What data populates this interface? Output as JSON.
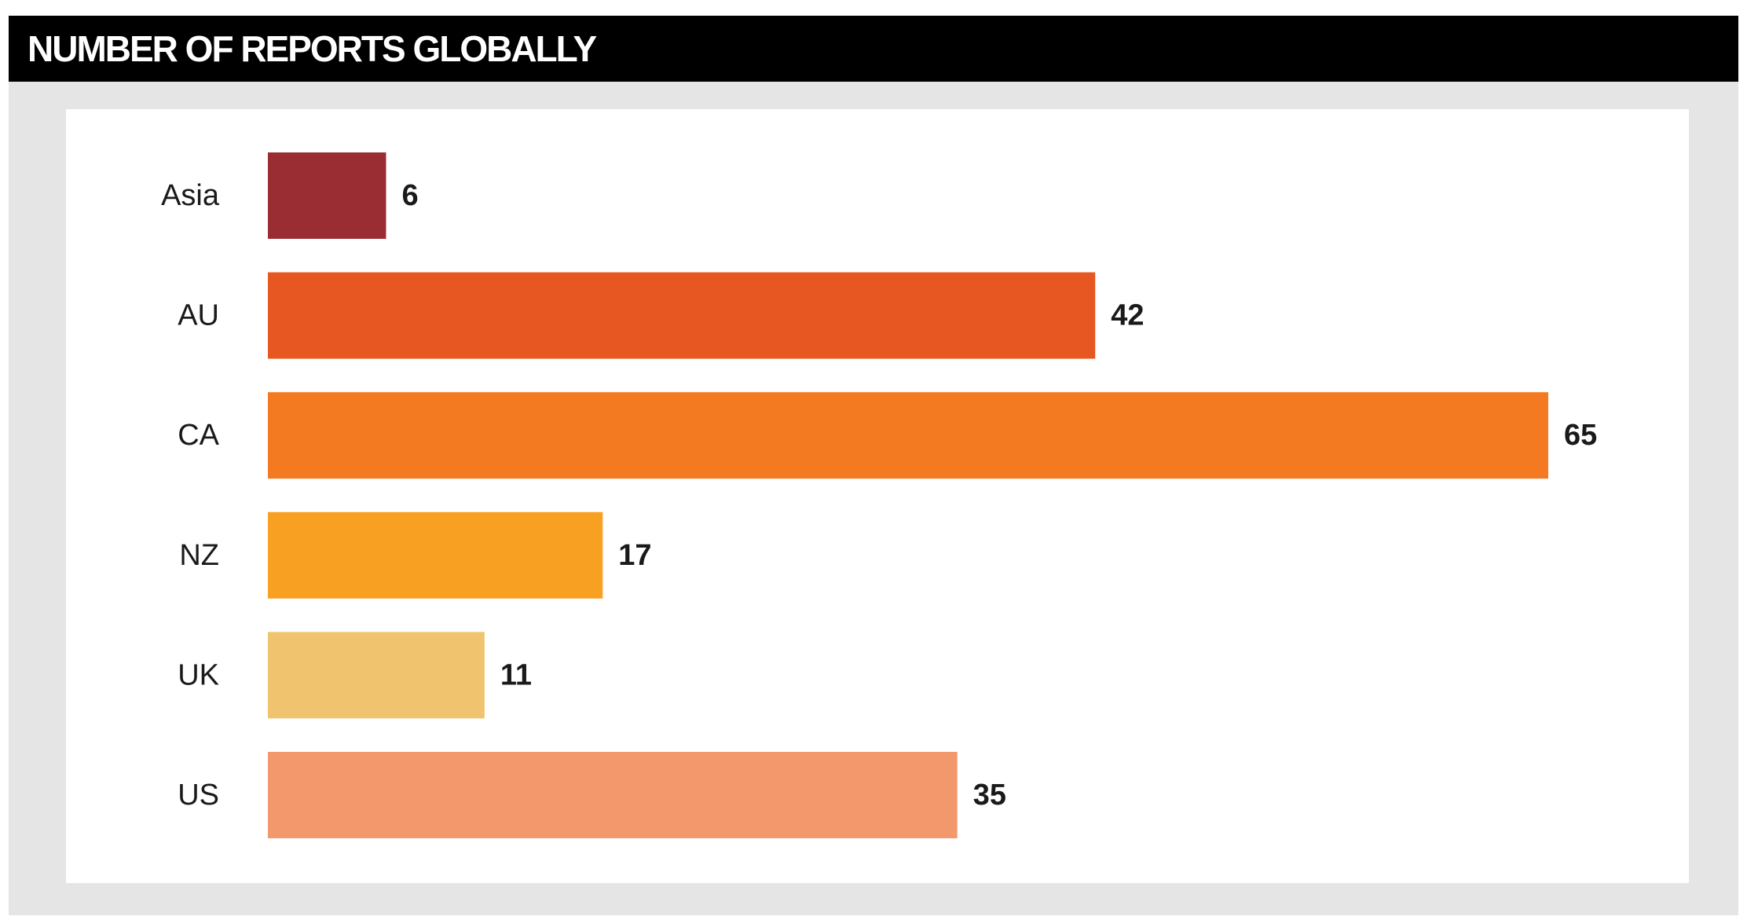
{
  "chart_data": {
    "type": "bar",
    "orientation": "horizontal",
    "title": "NUMBER OF REPORTS GLOBALLY",
    "categories": [
      "Asia",
      "AU",
      "CA",
      "NZ",
      "UK",
      "US"
    ],
    "values": [
      6,
      42,
      65,
      17,
      11,
      35
    ],
    "colors": [
      "#9a2d33",
      "#e65722",
      "#f47a22",
      "#f7a021",
      "#f0c46e",
      "#f3986d"
    ],
    "xlim": [
      0,
      65
    ],
    "grid": false,
    "legend": "none",
    "data_labels": true
  },
  "colors": {
    "title_bar": "#000000",
    "title_text": "#ffffff",
    "frame": "#e5e5e5",
    "panel": "#ffffff"
  }
}
